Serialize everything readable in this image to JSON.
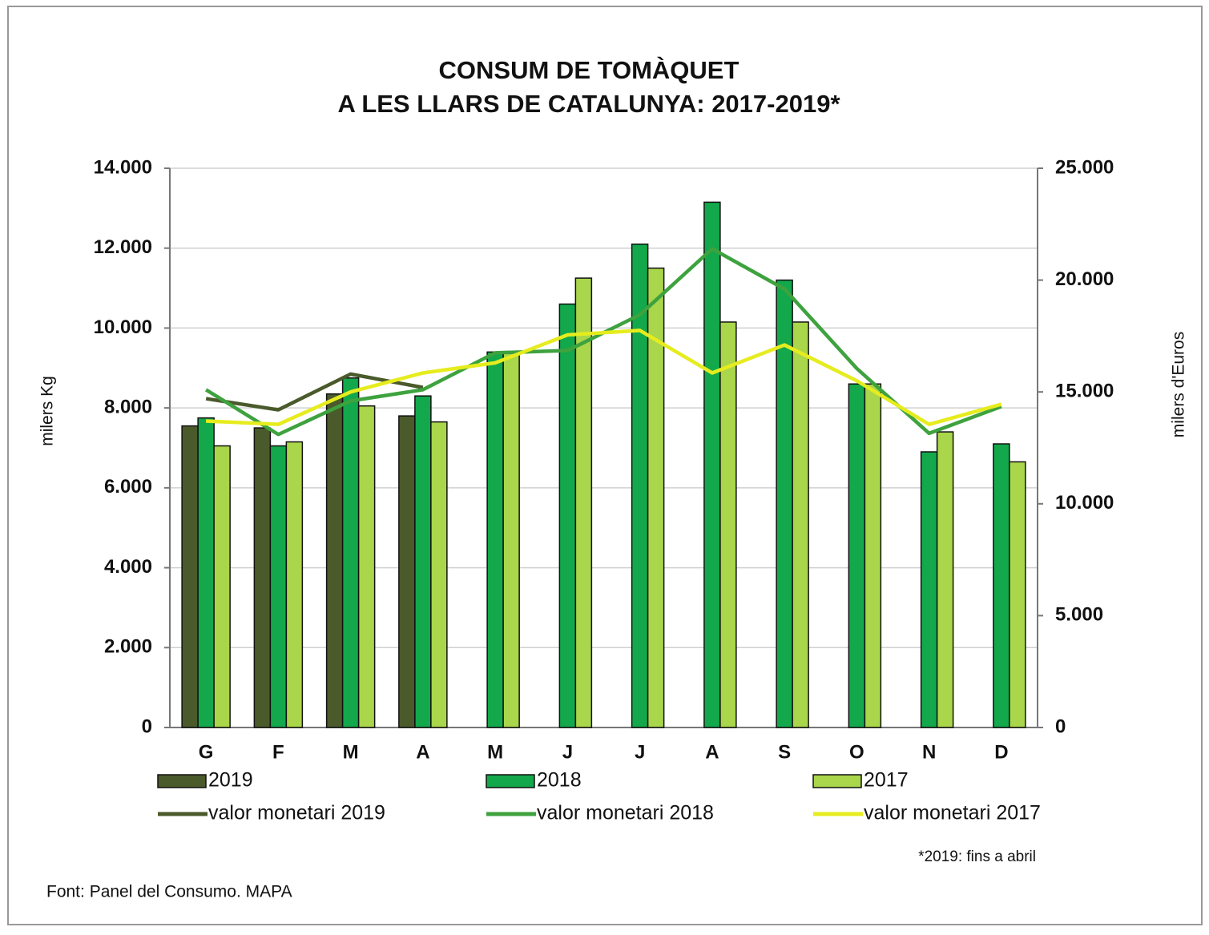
{
  "chart_data": {
    "type": "bar",
    "title": [
      "CONSUM  DE TOMÀQUET",
      "A LES LLARS DE  CATALUNYA: 2017-2019*"
    ],
    "ylabel": "milers Kg",
    "y2label": "milers d'Euros",
    "categories": [
      "G",
      "F",
      "M",
      "A",
      "M",
      "J",
      "J",
      "A",
      "S",
      "O",
      "N",
      "D"
    ],
    "ylim": [
      0,
      14000
    ],
    "yticks": [
      0,
      {
        "value": 2000,
        "label": "2.000"
      },
      {
        "value": 4000,
        "label": "4.000"
      },
      {
        "value": 6000,
        "label": "6.000"
      },
      {
        "value": 8000,
        "label": "8.000"
      },
      {
        "value": 10000,
        "label": "10.000"
      },
      {
        "value": 12000,
        "label": "12.000"
      },
      {
        "value": 14000,
        "label": "14.000"
      }
    ],
    "y2lim": [
      0,
      25000
    ],
    "y2ticks": [
      0,
      {
        "value": 5000,
        "label": "5.000"
      },
      {
        "value": 10000,
        "label": "10.000"
      },
      {
        "value": 15000,
        "label": "15.000"
      },
      {
        "value": 20000,
        "label": "20.000"
      },
      {
        "value": 25000,
        "label": "25.000"
      }
    ],
    "grid": true,
    "series": [
      {
        "name": "2019",
        "type": "bar",
        "color": "#4b5a2b",
        "values": [
          7550,
          7500,
          8350,
          7800,
          null,
          null,
          null,
          null,
          null,
          null,
          null,
          null
        ]
      },
      {
        "name": "2018",
        "type": "bar",
        "color": "#12a84b",
        "values": [
          7750,
          7050,
          8750,
          8300,
          9400,
          10600,
          12100,
          13150,
          11200,
          8600,
          6900,
          7100
        ]
      },
      {
        "name": "2017",
        "type": "bar",
        "color": "#a9d64a",
        "values": [
          7050,
          7150,
          8050,
          7650,
          9400,
          11250,
          11500,
          10150,
          10150,
          8600,
          7400,
          6650
        ]
      },
      {
        "name": "valor monetari 2019",
        "type": "line",
        "axis": "y2",
        "color": "#4b5a2b",
        "values": [
          14700,
          14200,
          15800,
          15200,
          null,
          null,
          null,
          null,
          null,
          null,
          null,
          null
        ]
      },
      {
        "name": "valor monetari 2018",
        "type": "line",
        "axis": "y2",
        "color": "#3ea23e",
        "values": [
          15100,
          13100,
          14600,
          15100,
          16750,
          16850,
          18450,
          21400,
          19600,
          16050,
          13150,
          14350
        ]
      },
      {
        "name": "valor monetari 2017",
        "type": "line",
        "axis": "y2",
        "color": "#e6ec1e",
        "values": [
          13700,
          13550,
          15000,
          15850,
          16300,
          17550,
          17750,
          15850,
          17100,
          15500,
          13550,
          14450
        ]
      }
    ],
    "annotation": "*2019: fins a abril",
    "source": "Font: Panel del Consumo. MAPA"
  }
}
